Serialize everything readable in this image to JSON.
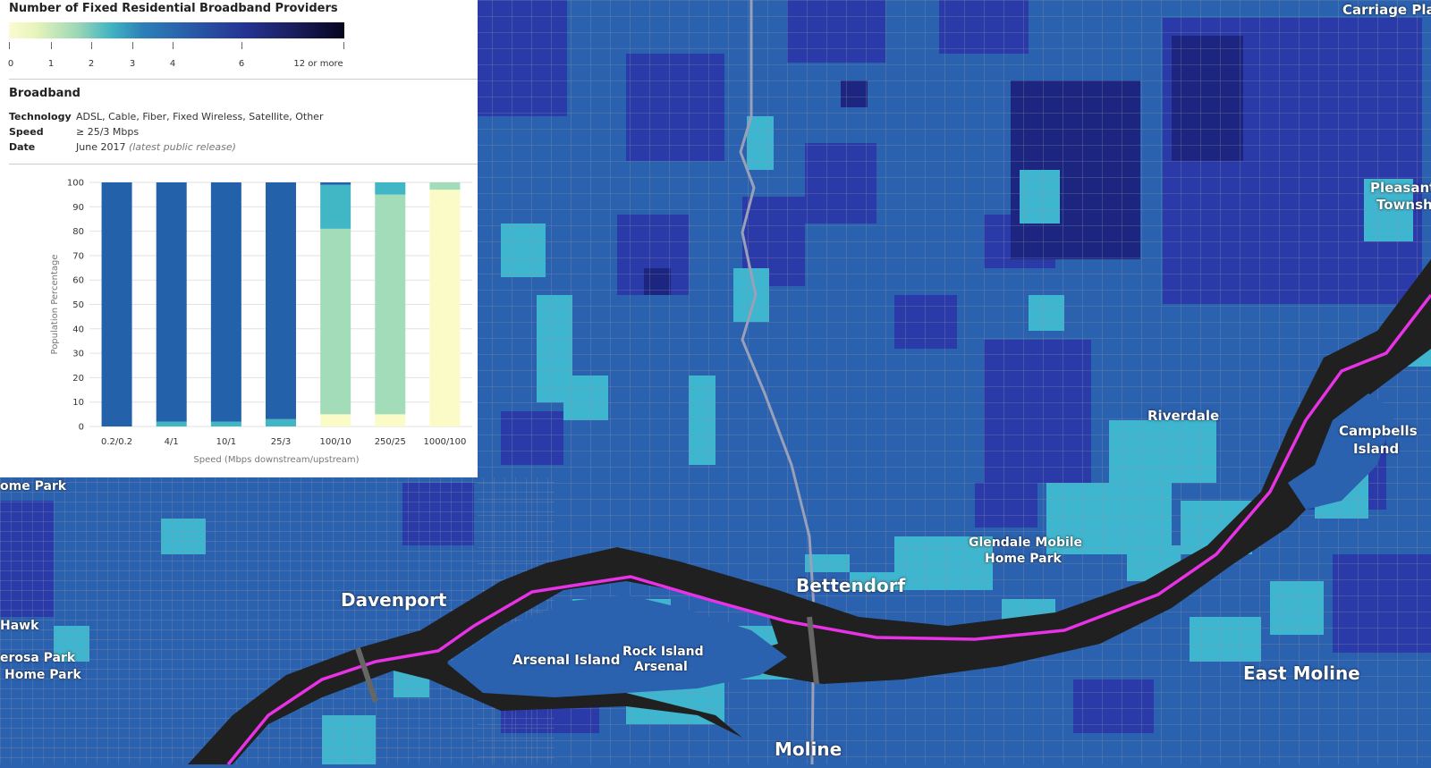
{
  "legend": {
    "title": "Number of Fixed Residential Broadband Providers",
    "ticks": [
      "0",
      "1",
      "2",
      "3",
      "4",
      "6",
      "12 or more"
    ],
    "colors": {
      "low": "#fbfbd2",
      "mid": "#2c7fb8",
      "high": "#05051f"
    }
  },
  "filters": {
    "section_title": "Broadband",
    "rows": [
      {
        "key": "Technology",
        "value": "ADSL, Cable, Fiber, Fixed Wireless, Satellite, Other",
        "note": ""
      },
      {
        "key": "Speed",
        "value": "≥ 25/3 Mbps",
        "note": ""
      },
      {
        "key": "Date",
        "value": "June 2017 ",
        "note": "(latest public release)"
      }
    ]
  },
  "chart_data": {
    "type": "bar",
    "stacked": true,
    "categories": [
      "0.2/0.2",
      "4/1",
      "10/1",
      "25/3",
      "100/10",
      "250/25",
      "1000/100"
    ],
    "series": [
      {
        "values": [
          0,
          0,
          0,
          0,
          5,
          5,
          97
        ],
        "color": "#fbfbc8"
      },
      {
        "values": [
          0,
          0,
          0,
          0,
          76,
          90,
          3
        ],
        "color": "#a3dcb8"
      },
      {
        "values": [
          0,
          2,
          2,
          3,
          18,
          5,
          0
        ],
        "color": "#41b6c4"
      },
      {
        "values": [
          100,
          98,
          98,
          97,
          1,
          0,
          0
        ],
        "color": "#2461ab"
      }
    ],
    "xlabel": "Speed (Mbps downstream/upstream)",
    "ylabel": "Population Percentage",
    "ylim": [
      0,
      100
    ],
    "yticks": [
      "0",
      "10",
      "20",
      "30",
      "40",
      "50",
      "60",
      "70",
      "80",
      "90",
      "100"
    ],
    "grid": true
  },
  "map": {
    "labels": {
      "carriage_place": "Carriage Place",
      "pleasant": "Pleasant V",
      "township": "Townsh",
      "riverdale": "Riverdale",
      "campbells": "Campbells",
      "island": "Island",
      "home_park_left": "ome Park",
      "glendale": "Glendale Mobile",
      "home_park_glendale": "Home Park",
      "bettendorf": "Bettendorf",
      "davenport": "Davenport",
      "hawk": "Hawk",
      "erosa": "erosa Park",
      "home_park_lower": "Home Park",
      "arsenal_island": "Arsenal Island",
      "rock_island": "Rock Island",
      "arsenal": "Arsenal",
      "east_moline": "East Moline",
      "moline": "Moline"
    },
    "colors": {
      "background": "#2b62b0",
      "river": "#202020",
      "state_line": "#e832e6",
      "one_provider": "#3fb6cf",
      "three_providers": "#2a3aa8",
      "four_providers": "#1c2580",
      "roads": "#8a8ea8"
    }
  }
}
